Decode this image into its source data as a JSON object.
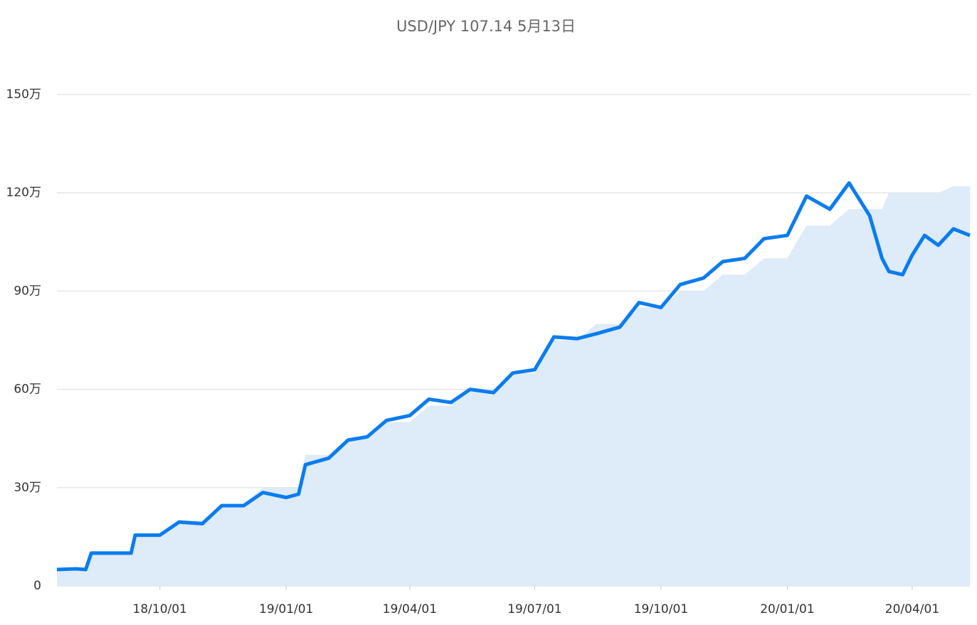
{
  "chart_data": {
    "type": "line",
    "title": "USD/JPY 107.14 5月13日",
    "x": [
      "2018-07-18",
      "2018-08-01",
      "2018-08-08",
      "2018-08-12",
      "2018-09-01",
      "2018-09-10",
      "2018-09-13",
      "2018-10-01",
      "2018-10-15",
      "2018-11-01",
      "2018-11-15",
      "2018-12-01",
      "2018-12-15",
      "2019-01-01",
      "2019-01-10",
      "2019-01-15",
      "2019-02-01",
      "2019-02-15",
      "2019-03-01",
      "2019-03-15",
      "2019-04-01",
      "2019-04-15",
      "2019-05-01",
      "2019-05-15",
      "2019-06-01",
      "2019-06-15",
      "2019-07-01",
      "2019-07-15",
      "2019-08-01",
      "2019-08-15",
      "2019-09-01",
      "2019-09-15",
      "2019-10-01",
      "2019-10-15",
      "2019-11-01",
      "2019-11-15",
      "2019-12-01",
      "2019-12-15",
      "2020-01-01",
      "2020-01-15",
      "2020-02-01",
      "2020-02-15",
      "2020-03-01",
      "2020-03-10",
      "2020-03-15",
      "2020-03-25",
      "2020-04-01",
      "2020-04-10",
      "2020-04-20",
      "2020-05-01",
      "2020-05-13"
    ],
    "series": [
      {
        "style": "area",
        "color": "#deebf8",
        "values": [
          50000,
          50000,
          50000,
          100000,
          100000,
          100000,
          150000,
          150000,
          200000,
          200000,
          250000,
          250000,
          300000,
          300000,
          300000,
          400000,
          400000,
          450000,
          450000,
          500000,
          500000,
          550000,
          550000,
          600000,
          600000,
          650000,
          650000,
          750000,
          750000,
          800000,
          800000,
          850000,
          850000,
          900000,
          900000,
          950000,
          950000,
          1000000,
          1000000,
          1100000,
          1100000,
          1150000,
          1150000,
          1150000,
          1200000,
          1200000,
          1200000,
          1200000,
          1200000,
          1220000,
          1220000
        ]
      },
      {
        "style": "line",
        "color": "#0a7cf0",
        "values": [
          50000,
          52000,
          50000,
          100000,
          100000,
          100000,
          155000,
          155000,
          195000,
          190000,
          245000,
          245000,
          285000,
          270000,
          280000,
          370000,
          390000,
          445000,
          455000,
          505000,
          520000,
          570000,
          560000,
          600000,
          590000,
          650000,
          660000,
          760000,
          755000,
          770000,
          790000,
          865000,
          850000,
          920000,
          940000,
          990000,
          1000000,
          1060000,
          1070000,
          1190000,
          1150000,
          1230000,
          1130000,
          1000000,
          960000,
          950000,
          1010000,
          1070000,
          1040000,
          1090000,
          1070000
        ]
      }
    ],
    "xlim": [
      "2018-07-18",
      "2020-05-13"
    ],
    "xticks": [
      {
        "value": "2018-10-01",
        "label": "18/10/01"
      },
      {
        "value": "2019-01-01",
        "label": "19/01/01"
      },
      {
        "value": "2019-04-01",
        "label": "19/04/01"
      },
      {
        "value": "2019-07-01",
        "label": "19/07/01"
      },
      {
        "value": "2019-10-01",
        "label": "19/10/01"
      },
      {
        "value": "2020-01-01",
        "label": "20/01/01"
      },
      {
        "value": "2020-04-01",
        "label": "20/04/01"
      }
    ],
    "ylim": [
      0,
      1500000
    ],
    "yticks": [
      0,
      {
        "value": 300000,
        "label": "30万"
      },
      {
        "value": 600000,
        "label": "60万"
      },
      {
        "value": 900000,
        "label": "90万"
      },
      {
        "value": 1200000,
        "label": "120万"
      },
      {
        "value": 1500000,
        "label": "150万"
      }
    ],
    "grid": true
  }
}
